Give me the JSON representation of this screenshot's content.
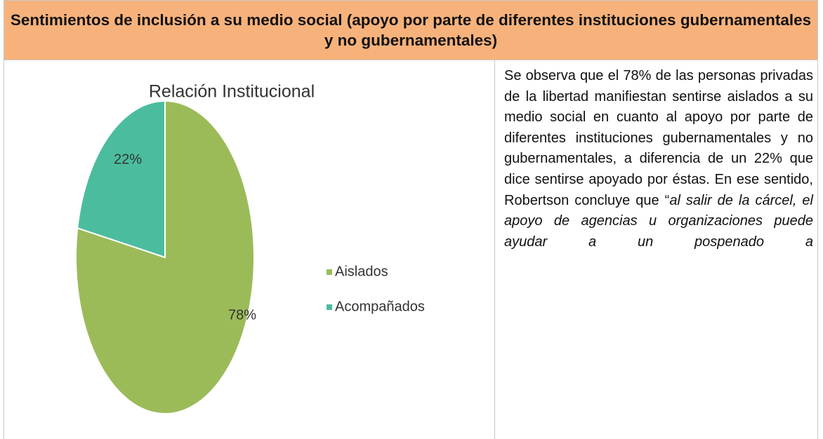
{
  "header": {
    "title": "Sentimientos de inclusión a su medio social (apoyo por parte de diferentes instituciones gubernamentales y no gubernamentales)"
  },
  "chart_data": {
    "type": "pie",
    "title": "Relación Institucional",
    "categories": [
      "Aislados",
      "Acompañados"
    ],
    "values": [
      78,
      22
    ],
    "value_labels": [
      "78%",
      "22%"
    ],
    "colors": [
      "#9bbb59",
      "#4bbd9e"
    ]
  },
  "text": {
    "body": "Se observa que el 78% de las personas privadas de la libertad manifiestan sentirse aislados a su medio social en cuanto al apoyo por parte de diferentes instituciones gubernamentales y no gubernamentales, a diferencia de un 22% que dice sentirse apoyado por éstas. En ese sentido, Robertson concluye que “",
    "quote": "al salir de la cárcel, el apoyo de agencias u organizaciones puede ayudar a un pospenado a"
  }
}
